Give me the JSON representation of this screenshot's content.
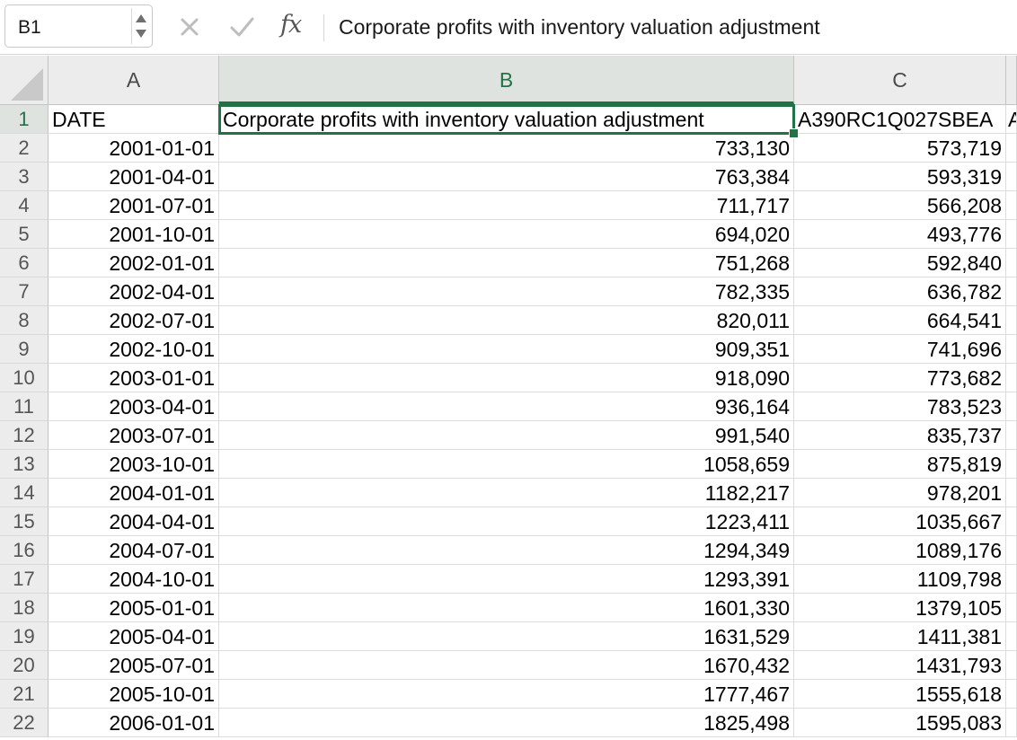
{
  "formula_bar": {
    "name_box": "B1",
    "fx_label": "fx",
    "formula_text": "Corporate profits with inventory valuation adjustment"
  },
  "columns": [
    "A",
    "B",
    "C"
  ],
  "selected_column": "B",
  "selected_row": "1",
  "header_row": {
    "row_number": "1",
    "a": "DATE",
    "b": "Corporate profits with inventory valuation adjustment",
    "c": "A390RC1Q027SBEA",
    "d": "A"
  },
  "rows": [
    {
      "n": "2",
      "a": "2001-01-01",
      "b": "733,130",
      "c": "573,719"
    },
    {
      "n": "3",
      "a": "2001-04-01",
      "b": "763,384",
      "c": "593,319"
    },
    {
      "n": "4",
      "a": "2001-07-01",
      "b": "711,717",
      "c": "566,208"
    },
    {
      "n": "5",
      "a": "2001-10-01",
      "b": "694,020",
      "c": "493,776"
    },
    {
      "n": "6",
      "a": "2002-01-01",
      "b": "751,268",
      "c": "592,840"
    },
    {
      "n": "7",
      "a": "2002-04-01",
      "b": "782,335",
      "c": "636,782"
    },
    {
      "n": "8",
      "a": "2002-07-01",
      "b": "820,011",
      "c": "664,541"
    },
    {
      "n": "9",
      "a": "2002-10-01",
      "b": "909,351",
      "c": "741,696"
    },
    {
      "n": "10",
      "a": "2003-01-01",
      "b": "918,090",
      "c": "773,682"
    },
    {
      "n": "11",
      "a": "2003-04-01",
      "b": "936,164",
      "c": "783,523"
    },
    {
      "n": "12",
      "a": "2003-07-01",
      "b": "991,540",
      "c": "835,737"
    },
    {
      "n": "13",
      "a": "2003-10-01",
      "b": "1058,659",
      "c": "875,819"
    },
    {
      "n": "14",
      "a": "2004-01-01",
      "b": "1182,217",
      "c": "978,201"
    },
    {
      "n": "15",
      "a": "2004-04-01",
      "b": "1223,411",
      "c": "1035,667"
    },
    {
      "n": "16",
      "a": "2004-07-01",
      "b": "1294,349",
      "c": "1089,176"
    },
    {
      "n": "17",
      "a": "2004-10-01",
      "b": "1293,391",
      "c": "1109,798"
    },
    {
      "n": "18",
      "a": "2005-01-01",
      "b": "1601,330",
      "c": "1379,105"
    },
    {
      "n": "19",
      "a": "2005-04-01",
      "b": "1631,529",
      "c": "1411,381"
    },
    {
      "n": "20",
      "a": "2005-07-01",
      "b": "1670,432",
      "c": "1431,793"
    },
    {
      "n": "21",
      "a": "2005-10-01",
      "b": "1777,467",
      "c": "1555,618"
    },
    {
      "n": "22",
      "a": "2006-01-01",
      "b": "1825,498",
      "c": "1595,083"
    }
  ],
  "colors": {
    "accent": "#217346",
    "header_bg": "#ececec",
    "gridline": "#dcdcdc"
  },
  "icons": {
    "cancel": "x-icon",
    "enter": "checkmark-icon",
    "function": "fx-icon"
  }
}
